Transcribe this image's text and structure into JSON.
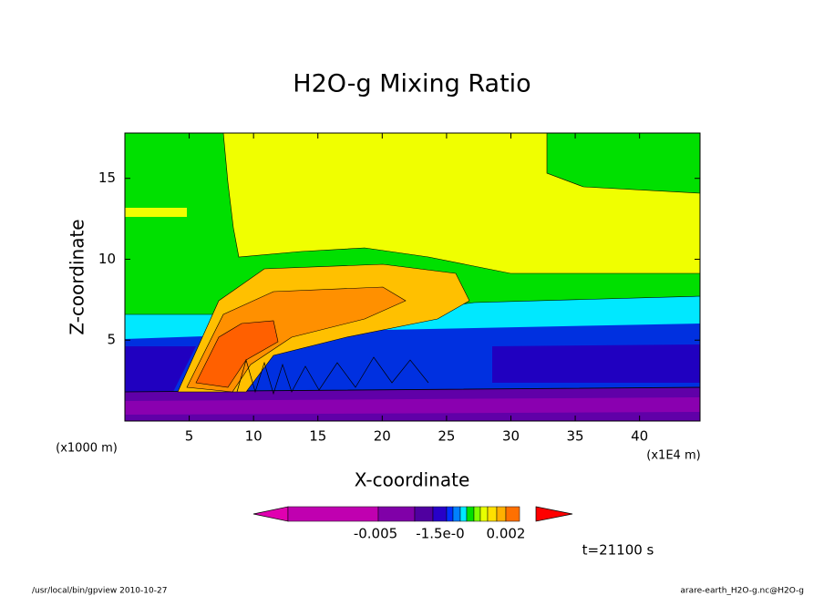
{
  "chart_data": {
    "type": "contour",
    "title": "H2O-g Mixing Ratio",
    "xlabel": "X-coordinate",
    "ylabel": "Z-coordinate",
    "x_unit": "(x1E4 m)",
    "y_unit": "(x1000 m)",
    "xlim": [
      0,
      44.7
    ],
    "xticks": [
      5,
      10,
      15,
      20,
      25,
      30,
      35,
      40
    ],
    "ylim": [
      0,
      17.8
    ],
    "yticks": [
      5,
      10,
      15
    ],
    "colorbar_colors": [
      "#e000b0",
      "#c000b0",
      "#8000a8",
      "#5000a0",
      "#2800c8",
      "#0030ff",
      "#0080ff",
      "#00e8ff",
      "#00e000",
      "#80ff00",
      "#e8ff00",
      "#ffe000",
      "#ffb000",
      "#ff7000",
      "#ff0000"
    ],
    "colorbar_labels": [
      "-0.005",
      "-1.5e-0",
      "0.002"
    ],
    "annotation": "t=21100 s",
    "footer_left": "/usr/local/bin/gpview  2010-10-27",
    "footer_right": "arare-earth_H2O-g.nc@H2O-g"
  }
}
